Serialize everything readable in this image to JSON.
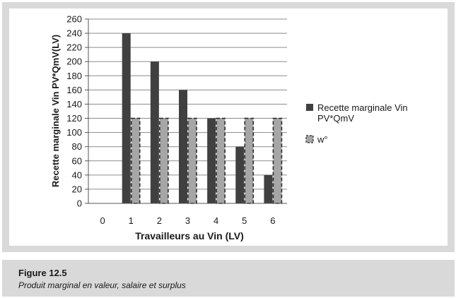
{
  "chart_data": {
    "type": "bar",
    "categories": [
      "0",
      "1",
      "2",
      "3",
      "4",
      "5",
      "6"
    ],
    "series": [
      {
        "name": "Recette marginale Vin PV*QmV",
        "color": "#404040",
        "values": [
          0,
          240,
          200,
          160,
          120,
          80,
          40
        ]
      },
      {
        "name": "w°",
        "color": "#a6a6a6",
        "values": [
          0,
          120,
          120,
          120,
          120,
          120,
          120
        ]
      }
    ],
    "xlabel": "Travailleurs au Vin (LV)",
    "ylabel": "Recette marginale Vin PV*QmV(LV)",
    "ylim": [
      0,
      260
    ],
    "yticks": [
      0,
      20,
      40,
      60,
      80,
      100,
      120,
      140,
      160,
      180,
      200,
      220,
      240,
      260
    ],
    "grid": true,
    "legend_position": "right"
  },
  "caption": {
    "title": "Figure 12.5",
    "text": "Produit marginal en valeur, salaire et surplus"
  }
}
